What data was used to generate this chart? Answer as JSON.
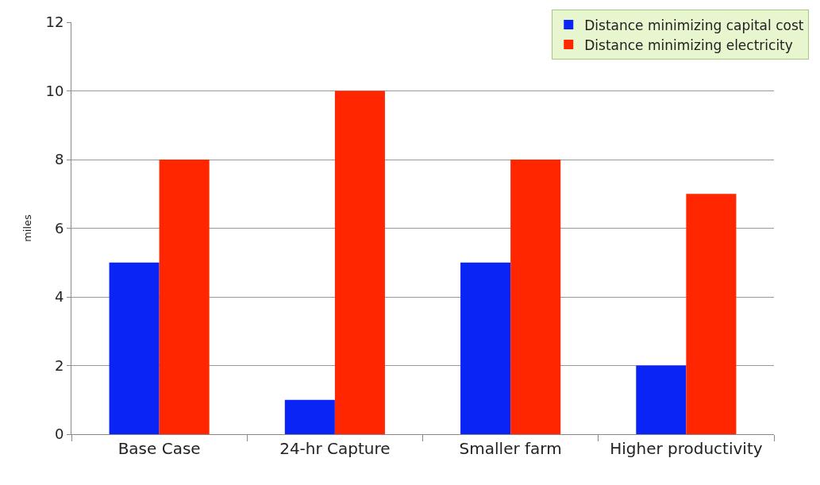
{
  "chart_data": {
    "type": "bar",
    "ylabel": "miles",
    "categories": [
      "Base Case",
      "24-hr Capture",
      "Smaller farm",
      "Higher productivity"
    ],
    "series": [
      {
        "name": "Distance minimizing capital cost",
        "color": "#0a24f5",
        "values": [
          5,
          1,
          5,
          2
        ]
      },
      {
        "name": "Distance minimizing electricity",
        "color": "#ff2600",
        "values": [
          8,
          10,
          8,
          7
        ]
      }
    ],
    "ylim": [
      0,
      12
    ],
    "yticks": [
      0,
      2,
      4,
      6,
      8,
      10,
      12
    ],
    "grid": "y",
    "legend": "top right"
  }
}
